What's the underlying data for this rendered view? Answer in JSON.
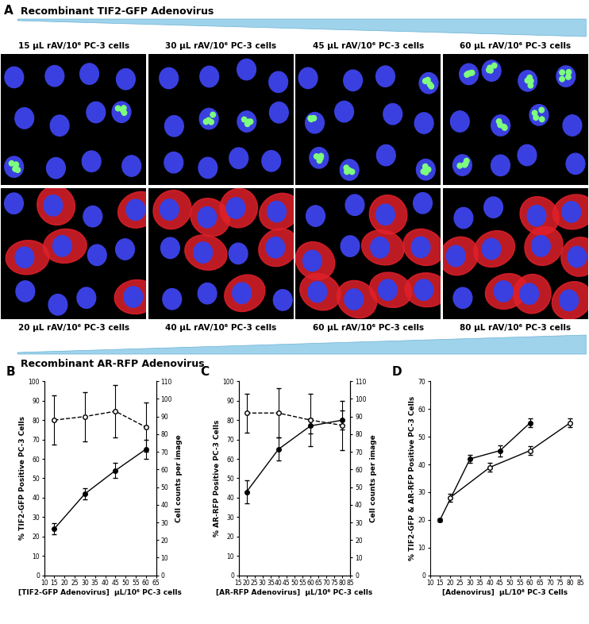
{
  "panel_a": {
    "label": "A",
    "top_title": "Recombinant TIF2-GFP Adenovirus",
    "top_doses": [
      "15 μL rAV/10⁶ PC-3 cells",
      "30 μL rAV/10⁶ PC-3 cells",
      "45 μL rAV/10⁶ PC-3 cells",
      "60 μL rAV/10⁶ PC-3 cells"
    ],
    "bottom_title": "Recombinant AR-RFP Adenovirus",
    "bottom_doses": [
      "20 μL rAV/10⁶ PC-3 cells",
      "40 μL rAV/10⁶ PC-3 cells",
      "60 μL rAV/10⁶ PC-3 cells",
      "80 μL rAV/10⁶ PC-3 cells"
    ]
  },
  "chart_data": [
    {
      "label": "B",
      "type": "line",
      "xlabel": "[TIF2-GFP Adenovirus]  μL/10⁶ PC-3 cells",
      "ylabel": "% TIF2-GFP Positive PC-3 Cells",
      "y2label": "Cell counts per image",
      "xlim": [
        10,
        65
      ],
      "xticks": [
        10,
        15,
        20,
        25,
        30,
        35,
        40,
        45,
        50,
        55,
        60,
        65
      ],
      "ylim": [
        0,
        100
      ],
      "yticks": [
        0,
        10,
        20,
        30,
        40,
        50,
        60,
        70,
        80,
        90,
        100
      ],
      "y2lim": [
        0,
        110
      ],
      "y2ticks": [
        0,
        10,
        20,
        30,
        40,
        50,
        60,
        70,
        80,
        90,
        100,
        110
      ],
      "series": [
        {
          "x": [
            15,
            30,
            45,
            60
          ],
          "values": [
            24,
            42,
            54,
            65
          ],
          "errors": [
            3,
            3,
            4,
            5
          ],
          "color": "#000000",
          "marker": "filled_circle",
          "line_style": "solid"
        },
        {
          "x": [
            15,
            30,
            45,
            60
          ],
          "values": [
            88,
            90,
            93,
            84
          ],
          "errors": [
            14,
            14,
            15,
            14
          ],
          "color": "#000000",
          "marker": "open_circle",
          "line_style": "dashed",
          "axis": "y2"
        }
      ]
    },
    {
      "label": "C",
      "type": "line",
      "xlabel": "[AR-RFP Adenovirus]  μL/10⁶ PC-3 cells",
      "ylabel": "% AR-RFP Positive PC-3 Cells",
      "y2label": "Cell counts per image",
      "xlim": [
        15,
        85
      ],
      "xticks": [
        15,
        20,
        25,
        30,
        35,
        40,
        45,
        50,
        55,
        60,
        65,
        70,
        75,
        80,
        85
      ],
      "ylim": [
        0,
        100
      ],
      "yticks": [
        0,
        10,
        20,
        30,
        40,
        50,
        60,
        70,
        80,
        90,
        100
      ],
      "y2lim": [
        0,
        110
      ],
      "y2ticks": [
        0,
        10,
        20,
        30,
        40,
        50,
        60,
        70,
        80,
        90,
        100,
        110
      ],
      "series": [
        {
          "x": [
            20,
            40,
            60,
            80
          ],
          "values": [
            43,
            65,
            77,
            80
          ],
          "errors": [
            6,
            6,
            4,
            5
          ],
          "color": "#000000",
          "marker": "filled_circle",
          "line_style": "solid"
        },
        {
          "x": [
            20,
            40,
            60,
            80
          ],
          "values": [
            92,
            92,
            88,
            85
          ],
          "errors": [
            11,
            14,
            15,
            14
          ],
          "color": "#000000",
          "marker": "open_circle",
          "line_style": "dashed",
          "axis": "y2"
        }
      ]
    },
    {
      "label": "D",
      "type": "line",
      "xlabel": "[Adenovirus]  μL/10⁶ PC-3 Cells",
      "ylabel": "% TIF2-GFP & AR-RFP Positive PC-3 Cells",
      "xlim": [
        10,
        85
      ],
      "xticks": [
        10,
        15,
        20,
        25,
        30,
        35,
        40,
        45,
        50,
        55,
        60,
        65,
        70,
        75,
        80,
        85
      ],
      "ylim": [
        0,
        70
      ],
      "yticks": [
        0,
        10,
        20,
        30,
        40,
        50,
        60,
        70
      ],
      "series": [
        {
          "x": [
            15,
            30,
            45,
            60
          ],
          "values": [
            20,
            42,
            45,
            55
          ],
          "errors": [
            0.5,
            1.5,
            2,
            1.5
          ],
          "color": "#000000",
          "marker": "filled_circle",
          "line_style": "solid"
        },
        {
          "x": [
            20,
            40,
            60,
            80
          ],
          "values": [
            28,
            39,
            45,
            55
          ],
          "errors": [
            1.5,
            1.5,
            1.5,
            1.5
          ],
          "color": "#000000",
          "marker": "open_circle",
          "line_style": "solid"
        }
      ]
    }
  ]
}
